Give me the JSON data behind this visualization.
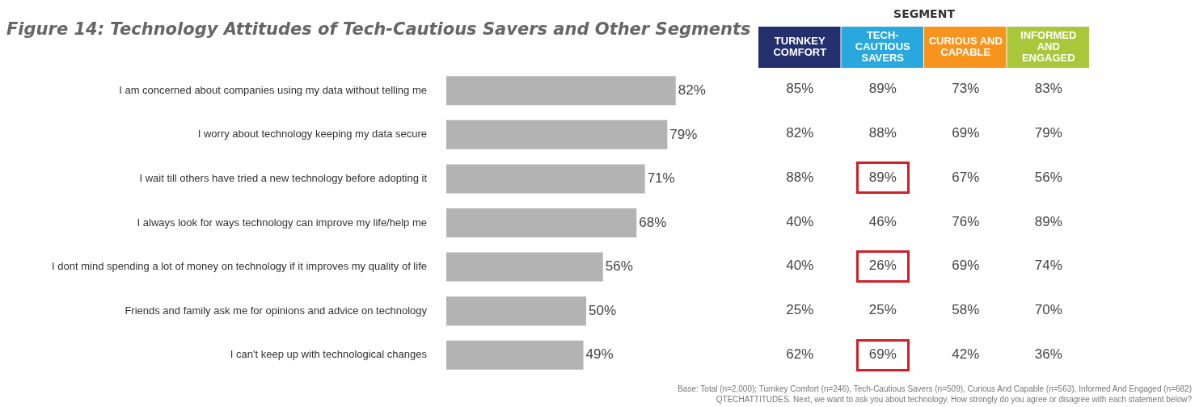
{
  "chart_data": [
    {
      "type": "bar",
      "orientation": "horizontal",
      "title": "Figure 14: Technology Attitudes of Tech-Cautious Savers and Other Segments",
      "categories": [
        "I am concerned about companies using my data without telling me",
        "I worry about technology keeping my data secure",
        "I wait till others have tried a new technology before adopting it",
        "I always look for ways technology can improve my life/help me",
        "I dont mind spending a lot of money on technology if it improves my quality of life",
        "Friends and family ask me for opinions and advice on technology",
        "I can't keep up with technological changes"
      ],
      "values": [
        82,
        79,
        71,
        68,
        56,
        50,
        49
      ],
      "value_labels": [
        "82%",
        "79%",
        "71%",
        "68%",
        "56%",
        "50%",
        "49%"
      ],
      "color": "#b3b3b3",
      "tick_labels": "y",
      "annotations": [
        "Base: Total (n=2,000); Turnkey Comfort (n=246), Tech-Cautious Savers (n=509), Curious And Capable (n=563), Informed And Engaged (n=682)",
        "QTECHATTITUDES. Next, we want to ask you about technology. How strongly do you agree or disagree with each statement below?"
      ]
    },
    {
      "type": "heatmap",
      "title": "SEGMENT",
      "categories": [
        "TURNKEY COMFORT",
        "TECH-CAUTIOUS SAVERS",
        "CURIOUS AND CAPABLE",
        "INFORMED AND ENGAGED"
      ],
      "colors": [
        "#24306e",
        "#29a8e0",
        "#f7941d",
        "#a8c73a"
      ],
      "y_categories": [
        null,
        null,
        null,
        null,
        null,
        null,
        null
      ],
      "cells": [
        [
          85,
          89,
          73,
          83
        ],
        [
          82,
          88,
          69,
          79
        ],
        [
          88,
          89,
          67,
          56
        ],
        [
          40,
          46,
          76,
          89
        ],
        [
          40,
          26,
          69,
          74
        ],
        [
          25,
          25,
          58,
          70
        ],
        [
          62,
          69,
          42,
          36
        ]
      ],
      "cell_labels": [
        [
          "85%",
          "89%",
          "73%",
          "83%"
        ],
        [
          "82%",
          "88%",
          "69%",
          "79%"
        ],
        [
          "88%",
          "89%",
          "67%",
          "56%"
        ],
        [
          "40%",
          "46%",
          "76%",
          "89%"
        ],
        [
          "40%",
          "26%",
          "69%",
          "74%"
        ],
        [
          "25%",
          "25%",
          "58%",
          "70%"
        ],
        [
          "62%",
          "69%",
          "42%",
          "36%"
        ]
      ]
    }
  ]
}
